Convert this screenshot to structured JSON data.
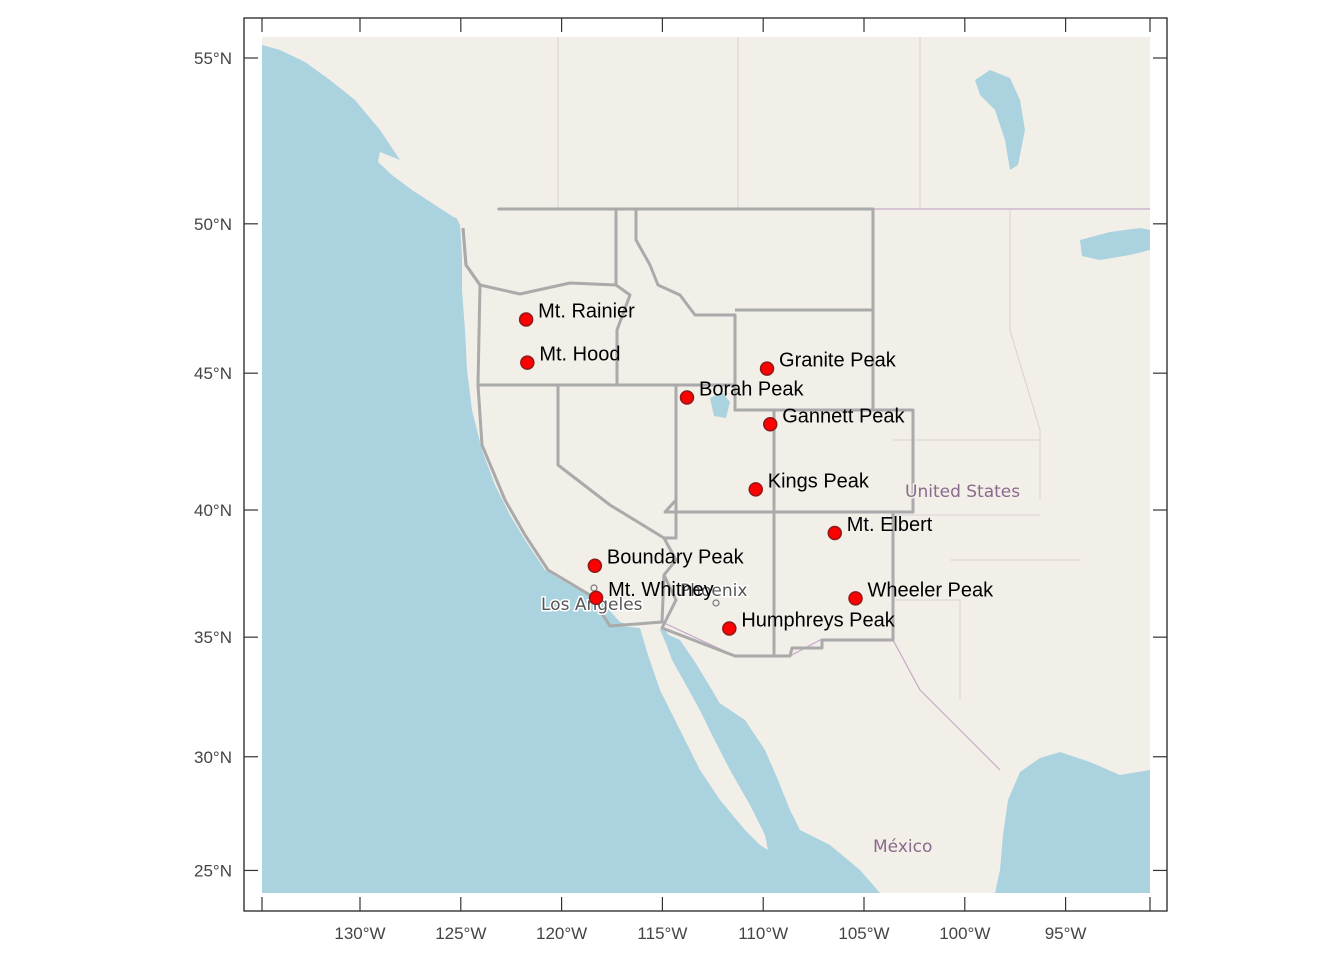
{
  "map": {
    "x_ticks": [
      "130°W",
      "125°W",
      "120°W",
      "115°W",
      "110°W",
      "105°W",
      "100°W",
      "95°W"
    ],
    "y_ticks": [
      "55°N",
      "50°N",
      "45°N",
      "40°N",
      "35°N",
      "30°N",
      "25°N"
    ],
    "basemap_labels": {
      "country_us": "United States",
      "country_mx": "México",
      "city_la": "Los Angeles",
      "city_phoenix": "Phoenix"
    },
    "colors": {
      "water": "#aad3df",
      "land": "#f2efe9",
      "state_border": "#aaaaaa",
      "marker_fill": "#ff0000",
      "marker_stroke": "#8b1a1a"
    },
    "peaks": [
      {
        "name": "Mt. Rainier",
        "lon": -121.76,
        "lat": 46.85
      },
      {
        "name": "Mt. Hood",
        "lon": -121.7,
        "lat": 45.37
      },
      {
        "name": "Granite Peak",
        "lon": -109.81,
        "lat": 45.16
      },
      {
        "name": "Borah Peak",
        "lon": -113.78,
        "lat": 44.14
      },
      {
        "name": "Gannett Peak",
        "lon": -109.65,
        "lat": 43.18
      },
      {
        "name": "Kings Peak",
        "lon": -110.37,
        "lat": 40.78
      },
      {
        "name": "Mt. Elbert",
        "lon": -106.45,
        "lat": 39.12
      },
      {
        "name": "Boundary Peak",
        "lon": -118.35,
        "lat": 37.85
      },
      {
        "name": "Mt. Whitney",
        "lon": -118.29,
        "lat": 36.58
      },
      {
        "name": "Wheeler Peak",
        "lon": -105.42,
        "lat": 36.56
      },
      {
        "name": "Humphreys Peak",
        "lon": -111.68,
        "lat": 35.35
      }
    ]
  }
}
